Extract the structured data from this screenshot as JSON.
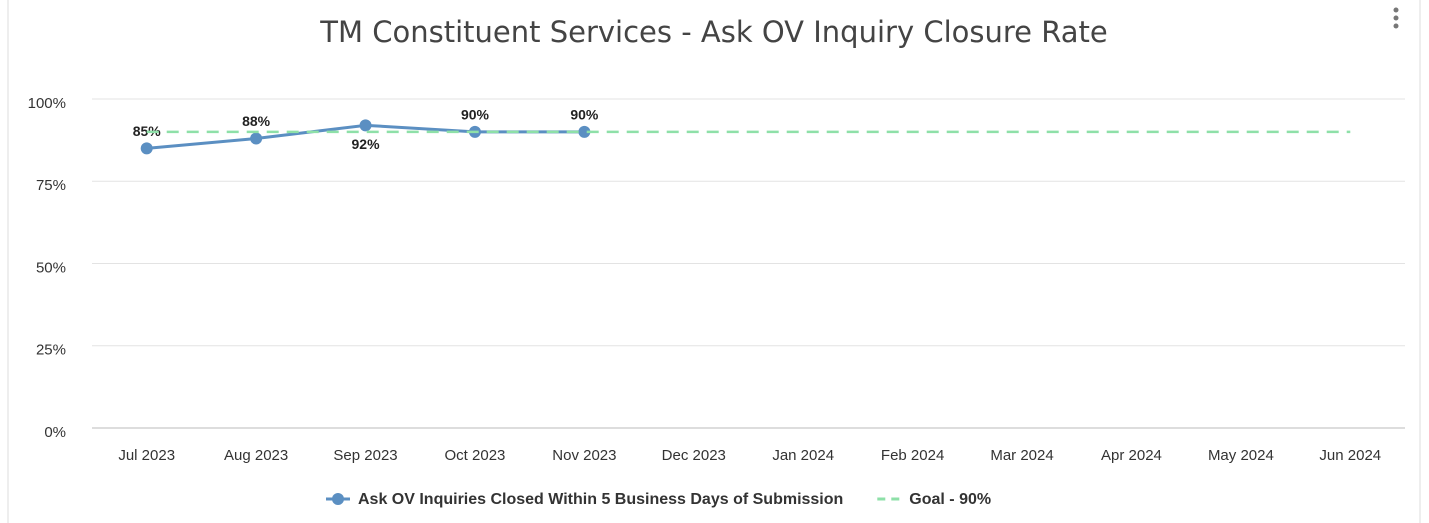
{
  "chart_data": {
    "type": "line",
    "title": "TM Constituent Services - Ask OV Inquiry Closure Rate",
    "categories": [
      "Jul 2023",
      "Aug 2023",
      "Sep 2023",
      "Oct 2023",
      "Nov 2023",
      "Dec 2023",
      "Jan 2024",
      "Feb 2024",
      "Mar 2024",
      "Apr 2024",
      "May 2024",
      "Jun 2024"
    ],
    "series": [
      {
        "name": "Ask OV Inquiries Closed Within 5 Business Days of Submission",
        "color": "#5b8fc2",
        "values": [
          85,
          88,
          92,
          90,
          90,
          null,
          null,
          null,
          null,
          null,
          null,
          null
        ],
        "value_labels": [
          "85%",
          "88%",
          "92%",
          "90%",
          "90%",
          null,
          null,
          null,
          null,
          null,
          null,
          null
        ]
      },
      {
        "name": "Goal - 90%",
        "color": "#8ee0a8",
        "dashed": true,
        "values": [
          90,
          90,
          90,
          90,
          90,
          90,
          90,
          90,
          90,
          90,
          90,
          90
        ]
      }
    ],
    "ylim": [
      0,
      100
    ],
    "yticks": [
      {
        "value": 0,
        "label": "0%"
      },
      {
        "value": 25,
        "label": "25%"
      },
      {
        "value": 50,
        "label": "50%"
      },
      {
        "value": 75,
        "label": "75%"
      },
      {
        "value": 100,
        "label": "100%"
      }
    ],
    "grid": true,
    "legend": "bottom"
  }
}
